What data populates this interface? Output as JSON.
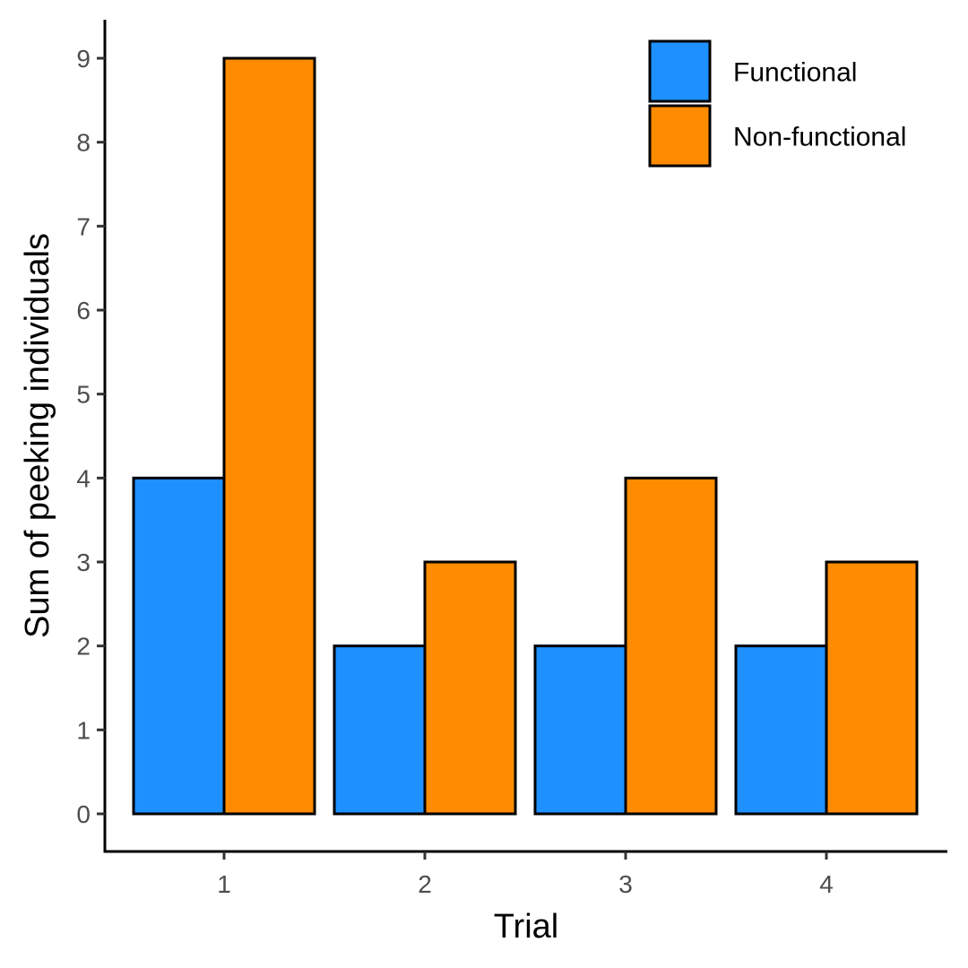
{
  "chart_data": {
    "type": "bar",
    "title": "",
    "xlabel": "Trial",
    "ylabel": "Sum of peeking individuals",
    "categories": [
      "1",
      "2",
      "3",
      "4"
    ],
    "series": [
      {
        "name": "Functional",
        "color": "#1E90FF",
        "values": [
          4,
          2,
          2,
          2
        ]
      },
      {
        "name": "Non-functional",
        "color": "#FF8C00",
        "values": [
          9,
          3,
          4,
          3
        ]
      }
    ],
    "yticks": [
      "0",
      "1",
      "2",
      "3",
      "4",
      "5",
      "6",
      "7",
      "8",
      "9"
    ],
    "ylim": [
      -0.45,
      9.45
    ],
    "grid": false,
    "legend_position": "top-right"
  }
}
